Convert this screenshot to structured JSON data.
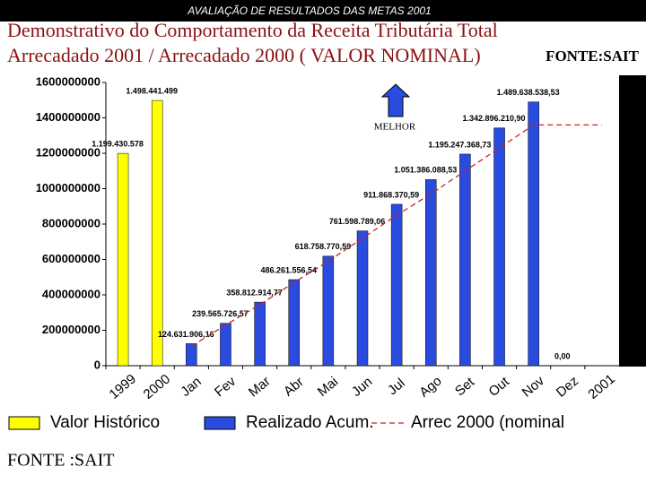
{
  "header": "AVALIAÇÃO DE  RESULTADOS DAS METAS 2001",
  "footer": "FONTE :SAIT",
  "chart_data": {
    "type": "bar",
    "title": "Demonstrativo do Comportamento  da Receita Tributária Total",
    "subtitle": "Arrecadado 2001 / Arrecadado 2000 ( VALOR NOMINAL)",
    "source": "FONTE:SAIT",
    "annotation": "MELHOR",
    "categories": [
      "1999",
      "2000",
      "Jan",
      "Fev",
      "Mar",
      "Abr",
      "Mai",
      "Jun",
      "Jul",
      "Ago",
      "Set",
      "Out",
      "Nov",
      "Dez",
      "2001"
    ],
    "ylim": [
      0,
      1600000000
    ],
    "yticks": [
      0,
      200000000,
      400000000,
      600000000,
      800000000,
      1000000000,
      1200000000,
      1400000000,
      1600000000
    ],
    "series": [
      {
        "name": "Valor Histórico",
        "color": "#ffff00",
        "kind": "bar",
        "values": [
          1199430578,
          1498441499,
          null,
          null,
          null,
          null,
          null,
          null,
          null,
          null,
          null,
          null,
          null,
          null,
          null
        ],
        "value_labels": [
          "1.199.430.578",
          "1.498.441.499",
          null,
          null,
          null,
          null,
          null,
          null,
          null,
          null,
          null,
          null,
          null,
          null,
          null
        ]
      },
      {
        "name": "Realizado Acum.",
        "color": "#2a4be0",
        "kind": "bar",
        "values": [
          null,
          null,
          124631906.16,
          239565726.57,
          358812914.77,
          486261556.54,
          618758770.59,
          761598789.06,
          911868370.59,
          1051386088.53,
          1195247368.73,
          1342896210.9,
          1489638538.53,
          0.0,
          null
        ],
        "value_labels": [
          null,
          null,
          "124.631.906,16",
          "239.565.726,57",
          "358.812.914,77",
          "486.261.556,54",
          "618.758.770,59",
          "761.598.789,06",
          "911.868.370,59",
          "1.051.386.088,53",
          "1.195.247.368,73",
          "1.342.896.210,90",
          "1.489.638.538,53",
          "0,00",
          null
        ]
      },
      {
        "name": "Arrec 2000 (nominal",
        "color": "#cc2222",
        "kind": "dashed-line",
        "values": [
          null,
          null,
          110000000,
          230000000,
          345000000,
          470000000,
          590000000,
          720000000,
          850000000,
          970000000,
          1100000000,
          1230000000,
          1360000000,
          1360000000,
          1360000000
        ]
      }
    ]
  }
}
